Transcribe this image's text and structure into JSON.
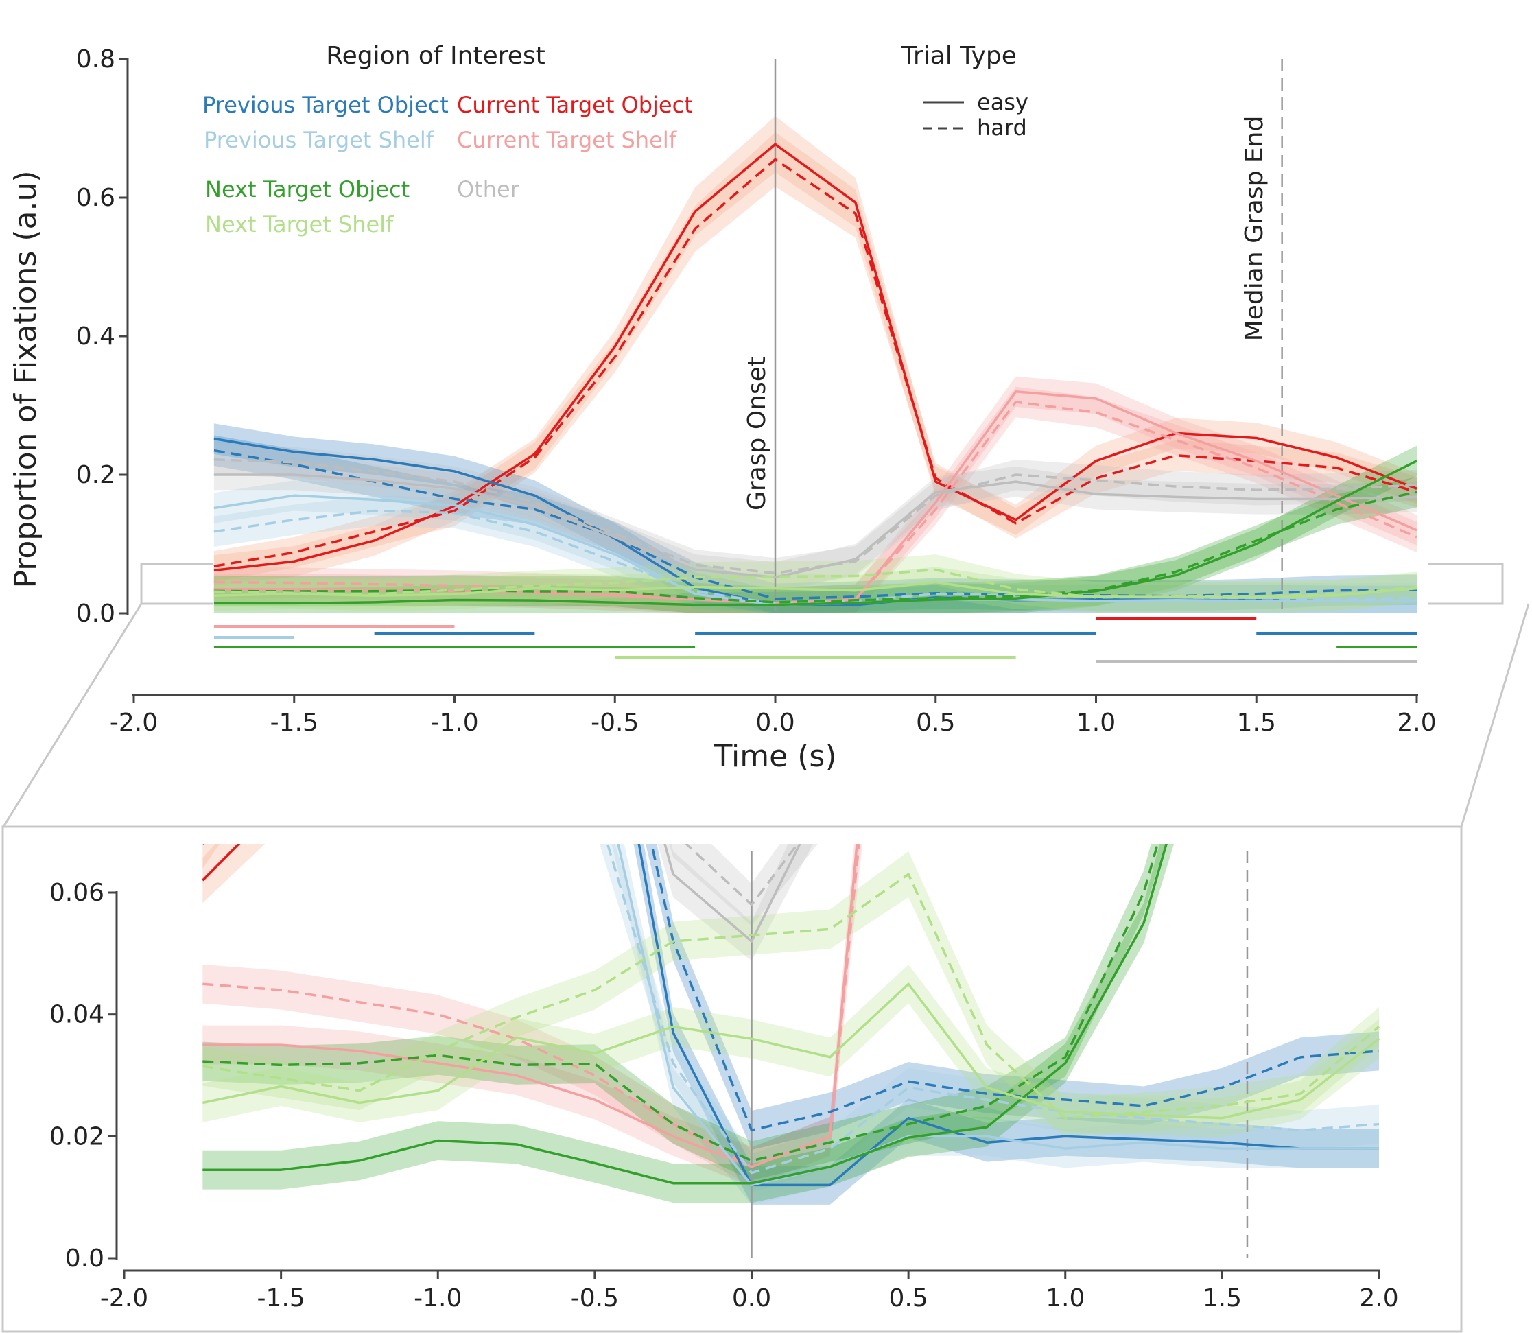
{
  "colors": {
    "prev_object": "#2b7bba",
    "prev_shelf": "#a6cee3",
    "curr_object": "#e31a1c",
    "curr_shelf": "#f4a0a0",
    "next_object": "#33a02c",
    "next_shelf": "#b2df8a",
    "other": "#bdbdbd",
    "band_curr_object": "#f4a582",
    "axis": "#444444",
    "marker": "#999999",
    "inset_frame": "#c8c8c8"
  },
  "chart_data": [
    {
      "type": "line",
      "xlabel": "Time (s)",
      "ylabel": "Proportion of Fixations (a.u)",
      "xlim": [
        -2.0,
        2.0
      ],
      "ylim": [
        0.0,
        0.8
      ],
      "xticks": [
        "-2.0",
        "-1.5",
        "-1.0",
        "-0.5",
        "0.0",
        "0.5",
        "1.0",
        "1.5",
        "2.0"
      ],
      "yticks": [
        "0.0",
        "0.2",
        "0.4",
        "0.6",
        "0.8"
      ],
      "legend_roi_title": "Region of Interest",
      "legend_trial_title": "Trial Type",
      "legend_trial": [
        "easy",
        "hard"
      ],
      "legend_roi": [
        {
          "label": "Previous Target Object",
          "key": "prev_object"
        },
        {
          "label": "Previous Target Shelf",
          "key": "prev_shelf"
        },
        {
          "label": "Next Target Object",
          "key": "next_object"
        },
        {
          "label": "Next Target Shelf",
          "key": "next_shelf"
        },
        {
          "label": "Current Target Object",
          "key": "curr_object"
        },
        {
          "label": "Current Target Shelf",
          "key": "curr_shelf"
        },
        {
          "label": "Other",
          "key": "other"
        }
      ],
      "vlines": [
        {
          "x": 0.0,
          "label": "Grasp Onset",
          "style": "solid"
        },
        {
          "x": 1.58,
          "label": "Median Grasp End",
          "style": "dashed"
        }
      ],
      "x": [
        -1.75,
        -1.5,
        -1.25,
        -1.0,
        -0.75,
        -0.5,
        -0.25,
        0.0,
        0.25,
        0.5,
        0.75,
        1.0,
        1.25,
        1.5,
        1.75,
        2.0
      ],
      "series": [
        {
          "key": "curr_object",
          "trial": "easy",
          "values": [
            0.062,
            0.075,
            0.105,
            0.155,
            0.23,
            0.385,
            0.58,
            0.677,
            0.593,
            0.19,
            0.135,
            0.22,
            0.26,
            0.253,
            0.225,
            0.18
          ]
        },
        {
          "key": "curr_object",
          "trial": "hard",
          "values": [
            0.068,
            0.088,
            0.118,
            0.148,
            0.225,
            0.37,
            0.555,
            0.655,
            0.577,
            0.195,
            0.13,
            0.195,
            0.228,
            0.22,
            0.21,
            0.175
          ]
        },
        {
          "key": "curr_shelf",
          "trial": "easy",
          "values": [
            0.035,
            0.035,
            0.034,
            0.032,
            0.03,
            0.026,
            0.02,
            0.015,
            0.02,
            0.16,
            0.32,
            0.31,
            0.26,
            0.22,
            0.17,
            0.12
          ]
        },
        {
          "key": "curr_shelf",
          "trial": "hard",
          "values": [
            0.045,
            0.044,
            0.042,
            0.04,
            0.036,
            0.03,
            0.022,
            0.015,
            0.02,
            0.15,
            0.305,
            0.29,
            0.25,
            0.21,
            0.16,
            0.11
          ]
        },
        {
          "key": "prev_object",
          "trial": "easy",
          "values": [
            0.252,
            0.233,
            0.222,
            0.205,
            0.17,
            0.108,
            0.037,
            0.012,
            0.012,
            0.023,
            0.019,
            0.02,
            0.0195,
            0.019,
            0.018,
            0.018
          ]
        },
        {
          "key": "prev_object",
          "trial": "hard",
          "values": [
            0.235,
            0.215,
            0.19,
            0.165,
            0.15,
            0.11,
            0.052,
            0.021,
            0.024,
            0.029,
            0.027,
            0.026,
            0.025,
            0.028,
            0.033,
            0.034
          ]
        },
        {
          "key": "prev_shelf",
          "trial": "easy",
          "values": [
            0.152,
            0.17,
            0.164,
            0.156,
            0.128,
            0.085,
            0.028,
            0.012,
            0.015,
            0.02,
            0.02,
            0.018,
            0.019,
            0.018,
            0.018,
            0.018
          ]
        },
        {
          "key": "prev_shelf",
          "trial": "hard",
          "values": [
            0.118,
            0.135,
            0.148,
            0.145,
            0.118,
            0.075,
            0.032,
            0.014,
            0.018,
            0.028,
            0.026,
            0.024,
            0.023,
            0.022,
            0.021,
            0.022
          ]
        },
        {
          "key": "other",
          "trial": "easy",
          "values": [
            0.2,
            0.2,
            0.192,
            0.18,
            0.155,
            0.11,
            0.063,
            0.052,
            0.078,
            0.175,
            0.19,
            0.172,
            0.168,
            0.165,
            0.165,
            0.168
          ]
        },
        {
          "key": "other",
          "trial": "hard",
          "values": [
            0.222,
            0.218,
            0.205,
            0.19,
            0.16,
            0.115,
            0.07,
            0.058,
            0.075,
            0.17,
            0.2,
            0.192,
            0.183,
            0.178,
            0.18,
            0.185
          ]
        },
        {
          "key": "next_object",
          "trial": "easy",
          "values": [
            0.0145,
            0.0145,
            0.016,
            0.0193,
            0.0187,
            0.0156,
            0.0123,
            0.0123,
            0.015,
            0.0198,
            0.0215,
            0.032,
            0.055,
            0.1,
            0.162,
            0.22
          ]
        },
        {
          "key": "next_object",
          "trial": "hard",
          "values": [
            0.0323,
            0.0317,
            0.032,
            0.0333,
            0.0317,
            0.0319,
            0.022,
            0.016,
            0.019,
            0.022,
            0.025,
            0.033,
            0.06,
            0.105,
            0.15,
            0.175
          ]
        },
        {
          "key": "next_shelf",
          "trial": "easy",
          "values": [
            0.0255,
            0.0282,
            0.0255,
            0.0275,
            0.0362,
            0.0336,
            0.038,
            0.036,
            0.033,
            0.045,
            0.028,
            0.024,
            0.0235,
            0.023,
            0.026,
            0.036
          ]
        },
        {
          "key": "next_shelf",
          "trial": "hard",
          "values": [
            0.0315,
            0.0295,
            0.0275,
            0.034,
            0.0395,
            0.044,
            0.052,
            0.053,
            0.054,
            0.063,
            0.035,
            0.023,
            0.024,
            0.025,
            0.027,
            0.038
          ]
        }
      ],
      "significance_bars": [
        {
          "key": "curr_shelf",
          "start": -1.75,
          "end": -1.0
        },
        {
          "key": "prev_shelf",
          "start": -1.75,
          "end": -1.5
        },
        {
          "key": "prev_object",
          "start": -1.25,
          "end": -0.75
        },
        {
          "key": "prev_object",
          "start": -0.25,
          "end": 1.0
        },
        {
          "key": "next_object",
          "start": -1.75,
          "end": -0.25
        },
        {
          "key": "next_shelf",
          "start": -0.5,
          "end": 0.75
        },
        {
          "key": "curr_object",
          "start": 1.0,
          "end": 1.5
        },
        {
          "key": "prev_object",
          "start": 1.5,
          "end": 2.0
        },
        {
          "key": "next_object",
          "start": 1.75,
          "end": 2.0
        },
        {
          "key": "other",
          "start": 1.0,
          "end": 2.0
        }
      ]
    },
    {
      "type": "line",
      "xlim": [
        -2.0,
        2.0
      ],
      "ylim": [
        0.0,
        0.06
      ],
      "xticks": [
        "-2.0",
        "-1.5",
        "-1.0",
        "-0.5",
        "0.0",
        "0.5",
        "1.0",
        "1.5",
        "2.0"
      ],
      "yticks": [
        "0.0",
        "0.02",
        "0.04",
        "0.06"
      ]
    }
  ]
}
